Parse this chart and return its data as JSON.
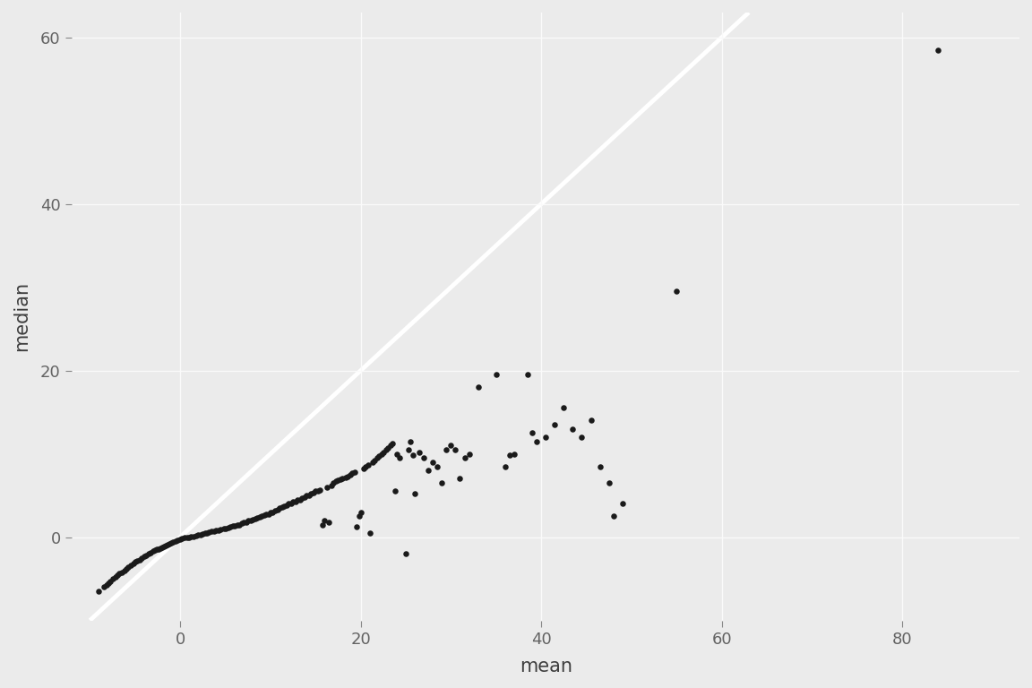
{
  "title": "",
  "xlabel": "mean",
  "ylabel": "median",
  "bg_color": "#EBEBEB",
  "grid_color": "#FAFAFA",
  "point_color": "#1a1a1a",
  "line_color": "#FFFFFF",
  "xlim": [
    -12,
    93
  ],
  "ylim": [
    -10,
    63
  ],
  "xticks": [
    0,
    20,
    40,
    60,
    80
  ],
  "yticks": [
    0,
    20,
    40,
    60
  ],
  "tick_label_color": "#636363",
  "label_fontsize": 15,
  "tick_fontsize": 13,
  "point_size": 22,
  "line_width": 3.5,
  "points": [
    [
      -9.0,
      -6.5
    ],
    [
      -8.5,
      -6.0
    ],
    [
      -8.2,
      -5.8
    ],
    [
      -8.0,
      -5.5
    ],
    [
      -7.8,
      -5.3
    ],
    [
      -7.5,
      -5.0
    ],
    [
      -7.2,
      -4.8
    ],
    [
      -7.0,
      -4.6
    ],
    [
      -6.8,
      -4.4
    ],
    [
      -6.5,
      -4.2
    ],
    [
      -6.2,
      -4.0
    ],
    [
      -6.0,
      -3.8
    ],
    [
      -5.8,
      -3.6
    ],
    [
      -5.5,
      -3.4
    ],
    [
      -5.2,
      -3.2
    ],
    [
      -5.0,
      -3.0
    ],
    [
      -4.8,
      -2.9
    ],
    [
      -4.5,
      -2.7
    ],
    [
      -4.3,
      -2.5
    ],
    [
      -4.0,
      -2.3
    ],
    [
      -3.8,
      -2.2
    ],
    [
      -3.5,
      -2.0
    ],
    [
      -3.3,
      -1.9
    ],
    [
      -3.0,
      -1.7
    ],
    [
      -2.8,
      -1.6
    ],
    [
      -2.6,
      -1.5
    ],
    [
      -2.4,
      -1.4
    ],
    [
      -2.2,
      -1.3
    ],
    [
      -2.0,
      -1.2
    ],
    [
      -1.8,
      -1.1
    ],
    [
      -1.6,
      -1.0
    ],
    [
      -1.4,
      -0.9
    ],
    [
      -1.2,
      -0.8
    ],
    [
      -1.0,
      -0.7
    ],
    [
      -0.8,
      -0.6
    ],
    [
      -0.5,
      -0.5
    ],
    [
      -0.3,
      -0.4
    ],
    [
      0.0,
      -0.3
    ],
    [
      0.2,
      -0.2
    ],
    [
      0.5,
      -0.1
    ],
    [
      0.8,
      0.0
    ],
    [
      1.0,
      0.0
    ],
    [
      1.2,
      0.1
    ],
    [
      1.5,
      0.1
    ],
    [
      1.8,
      0.2
    ],
    [
      2.0,
      0.3
    ],
    [
      2.3,
      0.3
    ],
    [
      2.5,
      0.4
    ],
    [
      2.8,
      0.5
    ],
    [
      3.0,
      0.5
    ],
    [
      3.2,
      0.6
    ],
    [
      3.5,
      0.7
    ],
    [
      3.8,
      0.7
    ],
    [
      4.0,
      0.8
    ],
    [
      4.3,
      0.8
    ],
    [
      4.5,
      0.9
    ],
    [
      4.8,
      1.0
    ],
    [
      5.0,
      1.0
    ],
    [
      5.3,
      1.1
    ],
    [
      5.5,
      1.2
    ],
    [
      5.8,
      1.3
    ],
    [
      6.0,
      1.3
    ],
    [
      6.3,
      1.5
    ],
    [
      6.5,
      1.5
    ],
    [
      6.8,
      1.7
    ],
    [
      7.0,
      1.8
    ],
    [
      7.3,
      1.8
    ],
    [
      7.5,
      2.0
    ],
    [
      7.8,
      2.0
    ],
    [
      8.0,
      2.1
    ],
    [
      8.3,
      2.2
    ],
    [
      8.5,
      2.3
    ],
    [
      8.8,
      2.4
    ],
    [
      9.0,
      2.5
    ],
    [
      9.3,
      2.6
    ],
    [
      9.5,
      2.7
    ],
    [
      9.8,
      2.8
    ],
    [
      10.0,
      3.0
    ],
    [
      10.2,
      3.0
    ],
    [
      10.5,
      3.2
    ],
    [
      10.8,
      3.3
    ],
    [
      11.0,
      3.5
    ],
    [
      11.3,
      3.6
    ],
    [
      11.5,
      3.7
    ],
    [
      11.8,
      3.8
    ],
    [
      12.0,
      4.0
    ],
    [
      12.3,
      4.0
    ],
    [
      12.5,
      4.2
    ],
    [
      12.8,
      4.3
    ],
    [
      13.0,
      4.5
    ],
    [
      13.3,
      4.5
    ],
    [
      13.5,
      4.7
    ],
    [
      13.8,
      4.8
    ],
    [
      14.0,
      5.0
    ],
    [
      14.3,
      5.0
    ],
    [
      14.5,
      5.2
    ],
    [
      14.8,
      5.3
    ],
    [
      15.0,
      5.5
    ],
    [
      15.3,
      5.5
    ],
    [
      15.5,
      5.7
    ],
    [
      15.8,
      1.5
    ],
    [
      16.0,
      2.0
    ],
    [
      16.3,
      6.0
    ],
    [
      16.5,
      1.8
    ],
    [
      16.8,
      6.2
    ],
    [
      17.0,
      6.5
    ],
    [
      17.3,
      6.7
    ],
    [
      17.5,
      6.8
    ],
    [
      17.8,
      6.9
    ],
    [
      18.0,
      7.0
    ],
    [
      18.3,
      7.2
    ],
    [
      18.5,
      7.3
    ],
    [
      18.8,
      7.5
    ],
    [
      19.0,
      7.7
    ],
    [
      19.3,
      7.8
    ],
    [
      19.5,
      1.2
    ],
    [
      19.8,
      2.5
    ],
    [
      20.0,
      3.0
    ],
    [
      20.3,
      8.2
    ],
    [
      20.5,
      8.5
    ],
    [
      20.8,
      8.7
    ],
    [
      21.0,
      0.5
    ],
    [
      21.3,
      9.0
    ],
    [
      21.5,
      9.2
    ],
    [
      21.8,
      9.5
    ],
    [
      22.0,
      9.7
    ],
    [
      22.3,
      10.0
    ],
    [
      22.5,
      10.2
    ],
    [
      22.8,
      10.5
    ],
    [
      23.0,
      10.7
    ],
    [
      23.3,
      11.0
    ],
    [
      23.5,
      11.2
    ],
    [
      23.8,
      5.5
    ],
    [
      24.0,
      10.0
    ],
    [
      24.3,
      9.5
    ],
    [
      25.0,
      -2.0
    ],
    [
      25.3,
      10.5
    ],
    [
      25.5,
      11.5
    ],
    [
      25.8,
      9.8
    ],
    [
      26.0,
      5.2
    ],
    [
      26.5,
      10.2
    ],
    [
      27.0,
      9.5
    ],
    [
      27.5,
      8.0
    ],
    [
      28.0,
      9.0
    ],
    [
      28.5,
      8.5
    ],
    [
      29.0,
      6.5
    ],
    [
      29.5,
      10.5
    ],
    [
      30.0,
      11.0
    ],
    [
      30.5,
      10.5
    ],
    [
      31.0,
      7.0
    ],
    [
      31.5,
      9.5
    ],
    [
      32.0,
      10.0
    ],
    [
      33.0,
      18.0
    ],
    [
      35.0,
      19.5
    ],
    [
      36.0,
      8.5
    ],
    [
      36.5,
      9.8
    ],
    [
      37.0,
      10.0
    ],
    [
      38.5,
      19.5
    ],
    [
      39.0,
      12.5
    ],
    [
      39.5,
      11.5
    ],
    [
      40.5,
      12.0
    ],
    [
      41.5,
      13.5
    ],
    [
      42.5,
      15.5
    ],
    [
      43.5,
      13.0
    ],
    [
      44.5,
      12.0
    ],
    [
      45.5,
      14.0
    ],
    [
      46.5,
      8.5
    ],
    [
      47.5,
      6.5
    ],
    [
      48.0,
      2.5
    ],
    [
      49.0,
      4.0
    ],
    [
      55.0,
      29.5
    ],
    [
      84.0,
      58.5
    ]
  ]
}
